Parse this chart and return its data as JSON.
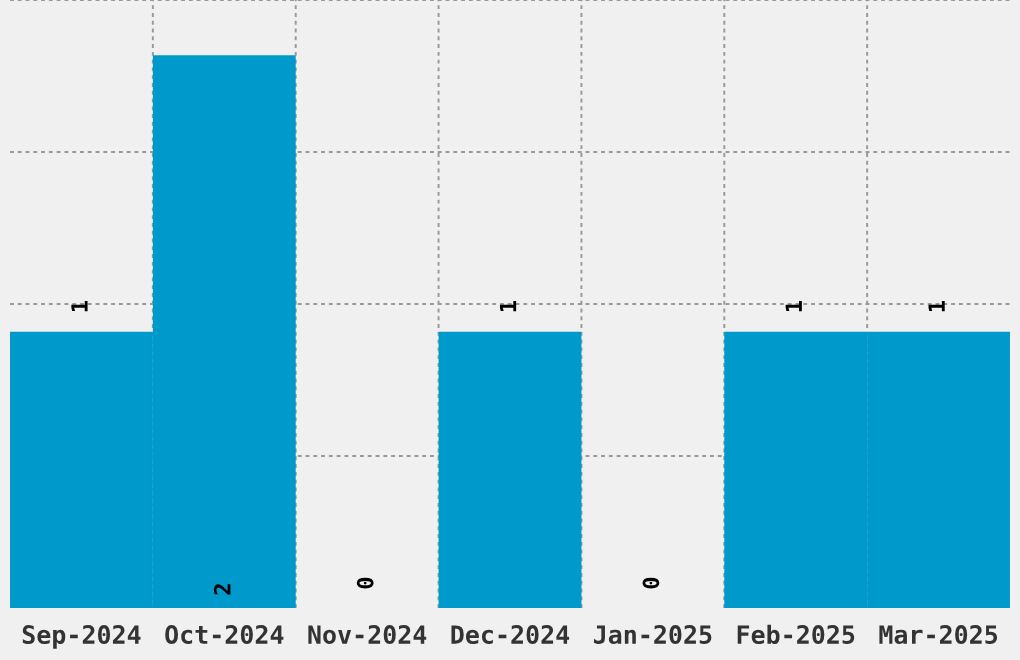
{
  "chart_data": {
    "type": "bar",
    "categories": [
      "Sep-2024",
      "Oct-2024",
      "Nov-2024",
      "Dec-2024",
      "Jan-2025",
      "Feb-2025",
      "Mar-2025"
    ],
    "values": [
      1,
      2,
      0,
      1,
      0,
      1,
      1
    ],
    "color": "#0099cc",
    "ylim": [
      0,
      2.2
    ],
    "yticks": [
      {
        "value": 0.55,
        "label": null
      },
      {
        "value": 1.1,
        "label": null
      },
      {
        "value": 1.65,
        "label": null
      },
      {
        "value": 2.2,
        "label": null
      }
    ],
    "grid": true,
    "data_labels": true,
    "tick_labels": "x"
  }
}
